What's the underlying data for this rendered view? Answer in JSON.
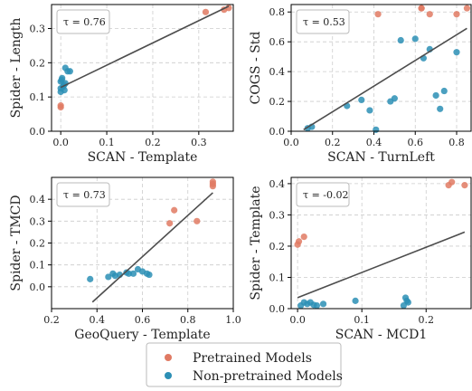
{
  "legend": {
    "items": [
      {
        "label": "Pretrained Models",
        "color": "#e07a63"
      },
      {
        "label": "Non-pretrained Models",
        "color": "#2c8fb5"
      }
    ]
  },
  "colors": {
    "pretrained": "#e07a63",
    "nonpretrained": "#2c8fb5",
    "fit_line": "#4d4d4d",
    "grid": "#cccccc"
  },
  "chart_data": [
    {
      "type": "scatter",
      "annotation": "τ = 0.76",
      "xlabel": "SCAN - Template",
      "ylabel": "Spider - Length",
      "xlim": [
        -0.02,
        0.375
      ],
      "ylim": [
        0,
        0.37
      ],
      "xticks": [
        0.0,
        0.1,
        0.2,
        0.3
      ],
      "xtick_labels": [
        "0.0",
        "0.1",
        "0.2",
        "0.3"
      ],
      "yticks": [
        0.0,
        0.1,
        0.2,
        0.3
      ],
      "ytick_labels": [
        "0.0",
        "0.1",
        "0.2",
        "0.3"
      ],
      "grid": true,
      "fit_line": {
        "x": [
          0.0,
          0.365
        ],
        "y": [
          0.128,
          0.365
        ]
      },
      "pretrained": {
        "x": [
          0.0,
          0.0,
          0.315,
          0.355,
          0.365
        ],
        "y": [
          0.07,
          0.075,
          0.348,
          0.355,
          0.36
        ]
      },
      "nonpretrained": {
        "x": [
          0.0,
          0.0,
          0.0,
          0.002,
          0.005,
          0.008,
          0.01,
          0.01,
          0.015,
          0.02,
          0.003,
          0.007
        ],
        "y": [
          0.115,
          0.125,
          0.145,
          0.15,
          0.13,
          0.12,
          0.14,
          0.185,
          0.175,
          0.175,
          0.155,
          0.135
        ]
      }
    },
    {
      "type": "scatter",
      "annotation": "τ = 0.53",
      "xlabel": "SCAN - TurnLeft",
      "ylabel": "COGS - Std",
      "xlim": [
        0,
        0.87
      ],
      "ylim": [
        0,
        0.85
      ],
      "xticks": [
        0.0,
        0.2,
        0.4,
        0.6,
        0.8
      ],
      "xtick_labels": [
        "0.0",
        "0.2",
        "0.4",
        "0.6",
        "0.8"
      ],
      "yticks": [
        0.0,
        0.2,
        0.4,
        0.6,
        0.8
      ],
      "ytick_labels": [
        "0.0",
        "0.2",
        "0.4",
        "0.6",
        "0.8"
      ],
      "grid": true,
      "fit_line": {
        "x": [
          0.06,
          0.85
        ],
        "y": [
          0.01,
          0.69
        ]
      },
      "pretrained": {
        "x": [
          0.42,
          0.63,
          0.63,
          0.67,
          0.8,
          0.85
        ],
        "y": [
          0.785,
          0.825,
          0.825,
          0.785,
          0.785,
          0.825
        ]
      },
      "nonpretrained": {
        "x": [
          0.08,
          0.1,
          0.27,
          0.34,
          0.38,
          0.41,
          0.48,
          0.5,
          0.53,
          0.6,
          0.64,
          0.67,
          0.7,
          0.72,
          0.74,
          0.8
        ],
        "y": [
          0.02,
          0.03,
          0.17,
          0.21,
          0.14,
          0.01,
          0.2,
          0.22,
          0.61,
          0.62,
          0.49,
          0.55,
          0.24,
          0.15,
          0.27,
          0.53
        ]
      }
    },
    {
      "type": "scatter",
      "annotation": "τ = 0.73",
      "xlabel": "GeoQuery - Template",
      "ylabel": "Spider - TMCD",
      "xlim": [
        0.2,
        1.0
      ],
      "ylim": [
        -0.1,
        0.5
      ],
      "xticks": [
        0.2,
        0.4,
        0.6,
        0.8,
        1.0
      ],
      "xtick_labels": [
        "0.2",
        "0.4",
        "0.6",
        "0.8",
        "1.0"
      ],
      "yticks": [
        0.0,
        0.1,
        0.2,
        0.3,
        0.4
      ],
      "ytick_labels": [
        "0.0",
        "0.1",
        "0.2",
        "0.3",
        "0.4"
      ],
      "grid": true,
      "fit_line": {
        "x": [
          0.38,
          0.91
        ],
        "y": [
          -0.07,
          0.43
        ]
      },
      "pretrained": {
        "x": [
          0.72,
          0.74,
          0.84,
          0.91,
          0.91,
          0.91
        ],
        "y": [
          0.29,
          0.35,
          0.3,
          0.46,
          0.48,
          0.47
        ]
      },
      "nonpretrained": {
        "x": [
          0.37,
          0.45,
          0.47,
          0.48,
          0.5,
          0.53,
          0.54,
          0.56,
          0.58,
          0.6,
          0.62,
          0.63
        ],
        "y": [
          0.035,
          0.045,
          0.06,
          0.05,
          0.055,
          0.065,
          0.06,
          0.06,
          0.08,
          0.07,
          0.06,
          0.055
        ]
      }
    },
    {
      "type": "scatter",
      "annotation": "τ = -0.02",
      "xlabel": "SCAN - MCD1",
      "ylabel": "Spider - Template",
      "xlim": [
        -0.01,
        0.27
      ],
      "ylim": [
        0,
        0.42
      ],
      "xticks": [
        0.0,
        0.1,
        0.2
      ],
      "xtick_labels": [
        "0.0",
        "0.1",
        "0.2"
      ],
      "yticks": [
        0.0,
        0.1,
        0.2,
        0.3,
        0.4
      ],
      "ytick_labels": [
        "0.0",
        "0.1",
        "0.2",
        "0.3",
        "0.4"
      ],
      "grid": true,
      "fit_line": {
        "x": [
          0.0,
          0.26
        ],
        "y": [
          0.035,
          0.245
        ]
      },
      "pretrained": {
        "x": [
          0.0,
          0.002,
          0.01,
          0.235,
          0.24,
          0.26
        ],
        "y": [
          0.205,
          0.215,
          0.23,
          0.395,
          0.405,
          0.395
        ]
      },
      "nonpretrained": {
        "x": [
          0.005,
          0.01,
          0.015,
          0.02,
          0.025,
          0.03,
          0.04,
          0.09,
          0.165,
          0.168,
          0.17,
          0.172
        ],
        "y": [
          0.01,
          0.02,
          0.015,
          0.02,
          0.012,
          0.01,
          0.015,
          0.025,
          0.01,
          0.035,
          0.025,
          0.02
        ]
      }
    }
  ]
}
